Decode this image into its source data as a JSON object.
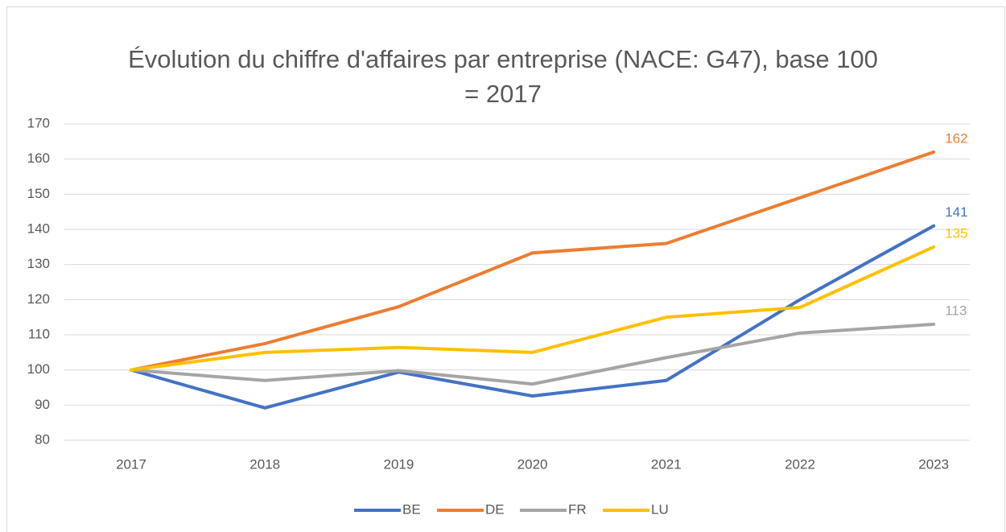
{
  "chart_data": {
    "type": "line",
    "title": "Évolution du chiffre d'affaires par entreprise (NACE: G47), base 100 = 2017",
    "categories": [
      "2017",
      "2018",
      "2019",
      "2020",
      "2021",
      "2022",
      "2023"
    ],
    "series": [
      {
        "name": "BE",
        "color": "#4472c4",
        "values": [
          100,
          89.2,
          99.4,
          92.6,
          97,
          120,
          141
        ]
      },
      {
        "name": "DE",
        "color": "#ed7d31",
        "values": [
          100,
          107.5,
          118,
          133.3,
          136,
          149,
          162
        ]
      },
      {
        "name": "FR",
        "color": "#a5a5a5",
        "values": [
          100,
          97,
          99.8,
          96,
          103.5,
          110.5,
          113
        ]
      },
      {
        "name": "LU",
        "color": "#ffc000",
        "values": [
          100,
          105,
          106.4,
          105,
          115,
          117.8,
          135
        ]
      }
    ],
    "ylim": [
      80,
      170
    ],
    "yticks": [
      80,
      90,
      100,
      110,
      120,
      130,
      140,
      150,
      160,
      170
    ],
    "grid": true,
    "legend": "bottom"
  }
}
